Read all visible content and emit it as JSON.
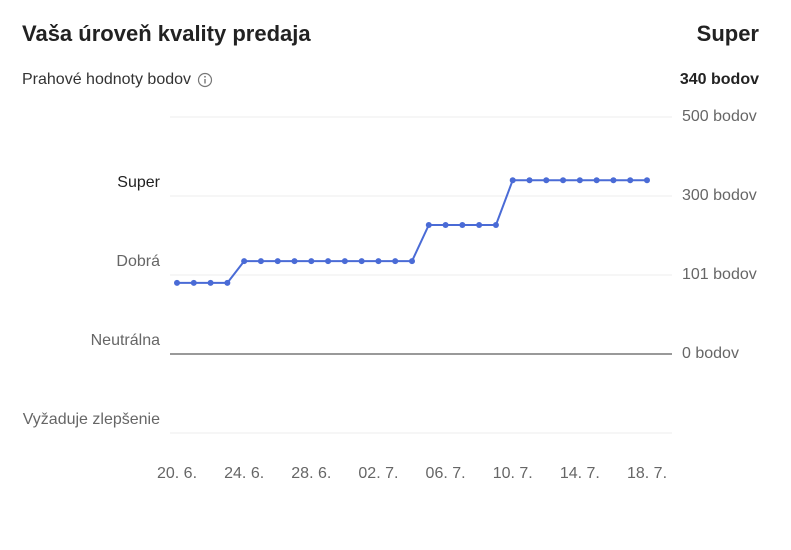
{
  "header": {
    "title": "Vaša úroveň kvality predaja",
    "level": "Super",
    "subtitle": "Prahové hodnoty bodov",
    "score": "340 bodov"
  },
  "chart_data": {
    "type": "line",
    "levels": [
      "Super",
      "Dobrá",
      "Neutrálna",
      "Vyžaduje zlepšenie"
    ],
    "categories": [
      "20. 6.",
      null,
      null,
      null,
      "24. 6.",
      null,
      null,
      null,
      "28. 6.",
      null,
      null,
      null,
      "02. 7.",
      null,
      null,
      null,
      "06. 7.",
      null,
      null,
      null,
      "10. 7.",
      null,
      null,
      null,
      "14. 7.",
      null,
      null,
      null,
      "18. 7."
    ],
    "series": [
      {
        "color": "#4a6bd6",
        "values": [
          91,
          91,
          91,
          91,
          136,
          136,
          136,
          136,
          136,
          136,
          136,
          136,
          136,
          136,
          136,
          227,
          227,
          227,
          227,
          227,
          340,
          340,
          340,
          340,
          340,
          340,
          340,
          340,
          340
        ]
      }
    ],
    "ylim": [
      0,
      500
    ],
    "yticks": [
      {
        "value": 0,
        "label": "0 bodov"
      },
      {
        "value": 101,
        "label": "101 bodov"
      },
      {
        "value": 300,
        "label": "300 bodov"
      },
      {
        "value": 500,
        "label": "500 bodov"
      }
    ],
    "grid": true
  }
}
